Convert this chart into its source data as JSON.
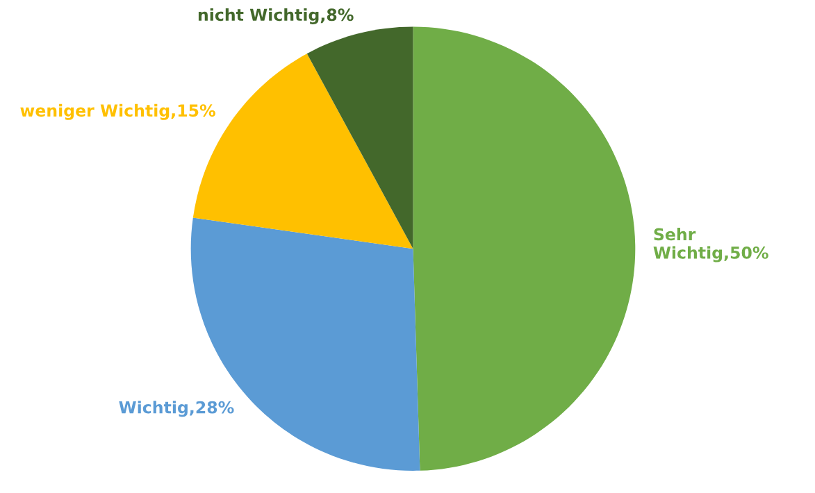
{
  "chart_data": {
    "type": "pie",
    "categories": [
      "Sehr Wichtig",
      "Wichtig",
      "weniger Wichtig",
      "nicht Wichtig"
    ],
    "values": [
      50,
      28,
      15,
      8
    ],
    "value_labels": [
      "50%",
      "28%",
      "15%",
      "8%"
    ],
    "colors": [
      "#70ad47",
      "#5b9bd5",
      "#ffc000",
      "#43682b"
    ]
  }
}
